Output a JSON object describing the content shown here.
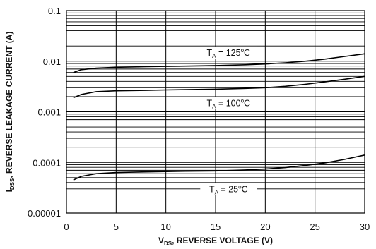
{
  "chart_data": {
    "type": "line",
    "xlabel": {
      "prefix": "V",
      "sub": "DS",
      "rest": ", REVERSE VOLTAGE (V)"
    },
    "ylabel": {
      "prefix": "I",
      "sub": "DSS",
      "rest": ", REVERSE LEAKAGE CURRENT (A)"
    },
    "xlim": [
      0,
      30
    ],
    "ylim": [
      1e-05,
      0.1
    ],
    "yscale": "log",
    "grid": true,
    "x_ticks": [
      {
        "value": 0,
        "label": "0"
      },
      {
        "value": 5,
        "label": "5"
      },
      {
        "value": 10,
        "label": "10"
      },
      {
        "value": 15,
        "label": "15"
      },
      {
        "value": 20,
        "label": "20"
      },
      {
        "value": 25,
        "label": "25"
      },
      {
        "value": 30,
        "label": "30"
      }
    ],
    "y_ticks": [
      {
        "value": 0.1,
        "label": "0.1"
      },
      {
        "value": 0.01,
        "label": "0.01"
      },
      {
        "value": 0.001,
        "label": "0.001"
      },
      {
        "value": 0.0001,
        "label": "0.0001"
      },
      {
        "value": 1e-05,
        "label": "0.00001"
      }
    ],
    "series": [
      {
        "label": {
          "prefix": "T",
          "sub": "A",
          "rest": " = 125",
          "sup": "o",
          "unit": "C"
        },
        "label_at": {
          "x": 16.3,
          "y": 0.0137
        },
        "x": [
          0.7,
          1.5,
          3,
          5,
          8,
          10,
          12,
          15,
          18,
          20,
          22,
          24,
          26,
          28,
          30
        ],
        "y": [
          0.006,
          0.0068,
          0.0073,
          0.0076,
          0.0078,
          0.0079,
          0.008,
          0.0082,
          0.0085,
          0.0088,
          0.0093,
          0.01,
          0.011,
          0.0124,
          0.014
        ]
      },
      {
        "label": {
          "prefix": "T",
          "sub": "A",
          "rest": " = 100",
          "sup": "o",
          "unit": "C"
        },
        "label_at": {
          "x": 16.3,
          "y": 0.00137
        },
        "x": [
          0.7,
          1.5,
          3,
          5,
          8,
          10,
          12,
          15,
          18,
          20,
          22,
          24,
          26,
          28,
          30
        ],
        "y": [
          0.0019,
          0.0022,
          0.0025,
          0.0026,
          0.00265,
          0.0027,
          0.00275,
          0.0028,
          0.0029,
          0.003,
          0.0032,
          0.0035,
          0.0039,
          0.0044,
          0.005
        ]
      },
      {
        "label": {
          "prefix": "T",
          "sub": "A",
          "rest": " = 25",
          "sup": "o",
          "unit": "C"
        },
        "label_at": {
          "x": 16.3,
          "y": 2.75e-05
        },
        "x": [
          0.7,
          1.5,
          3,
          5,
          8,
          10,
          12,
          15,
          18,
          20,
          22,
          24,
          26,
          28,
          30
        ],
        "y": [
          4.5e-05,
          5.3e-05,
          6e-05,
          6.3e-05,
          6.5e-05,
          6.6e-05,
          6.7e-05,
          6.8e-05,
          7.1e-05,
          7.4e-05,
          7.9e-05,
          8.7e-05,
          9.8e-05,
          0.000115,
          0.00014
        ]
      }
    ]
  }
}
